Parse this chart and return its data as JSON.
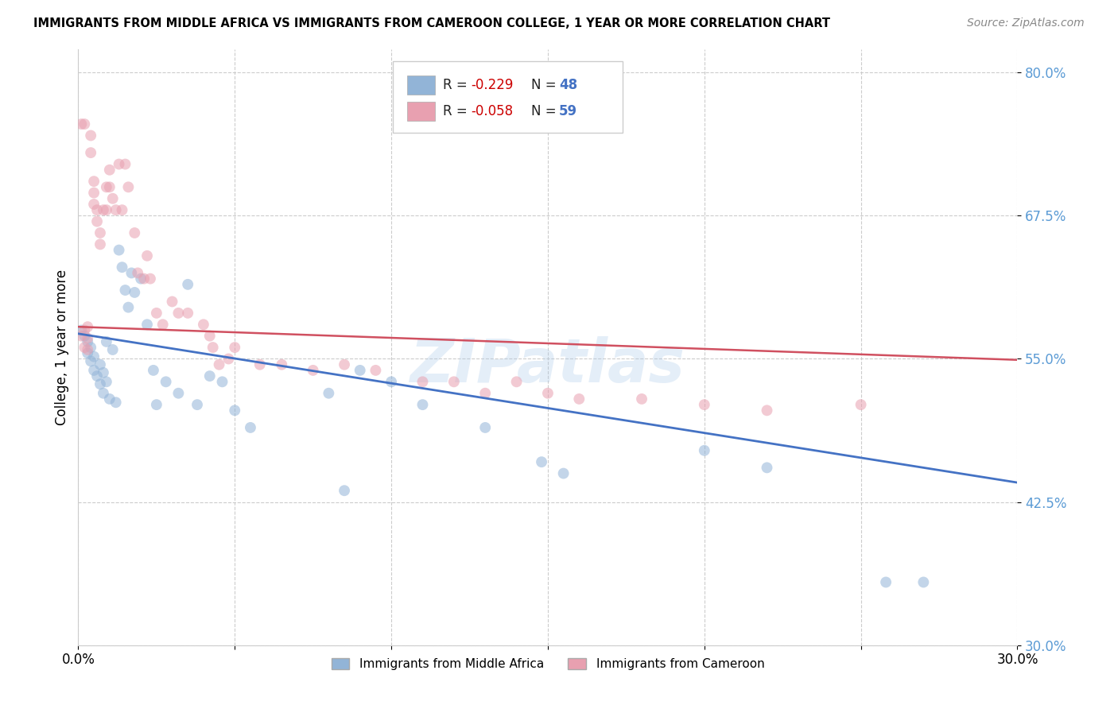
{
  "title": "IMMIGRANTS FROM MIDDLE AFRICA VS IMMIGRANTS FROM CAMEROON COLLEGE, 1 YEAR OR MORE CORRELATION CHART",
  "source": "Source: ZipAtlas.com",
  "xlabel_blue": "Immigrants from Middle Africa",
  "xlabel_pink": "Immigrants from Cameroon",
  "ylabel": "College, 1 year or more",
  "xlim": [
    0.0,
    0.3
  ],
  "ylim": [
    0.3,
    0.82
  ],
  "yticks": [
    0.3,
    0.425,
    0.55,
    0.675,
    0.8
  ],
  "ytick_labels": [
    "30.0%",
    "42.5%",
    "55.0%",
    "67.5%",
    "80.0%"
  ],
  "xticks": [
    0.0,
    0.05,
    0.1,
    0.15,
    0.2,
    0.25,
    0.3
  ],
  "xtick_labels": [
    "0.0%",
    "",
    "",
    "",
    "",
    "",
    "30.0%"
  ],
  "legend_R_blue": "-0.229",
  "legend_N_blue": "48",
  "legend_R_pink": "-0.058",
  "legend_N_pink": "59",
  "blue_color": "#92b4d7",
  "pink_color": "#e8a0b0",
  "blue_line_color": "#4472c4",
  "pink_line_color": "#d05060",
  "watermark": "ZIPatlas",
  "blue_x": [
    0.001,
    0.002,
    0.003,
    0.003,
    0.004,
    0.004,
    0.005,
    0.005,
    0.006,
    0.007,
    0.007,
    0.008,
    0.008,
    0.009,
    0.009,
    0.01,
    0.011,
    0.012,
    0.013,
    0.014,
    0.015,
    0.016,
    0.017,
    0.018,
    0.02,
    0.022,
    0.024,
    0.025,
    0.028,
    0.032,
    0.035,
    0.038,
    0.042,
    0.046,
    0.05,
    0.055,
    0.08,
    0.085,
    0.09,
    0.1,
    0.11,
    0.13,
    0.148,
    0.155,
    0.2,
    0.22,
    0.258,
    0.27
  ],
  "blue_y": [
    0.575,
    0.57,
    0.565,
    0.555,
    0.56,
    0.548,
    0.54,
    0.552,
    0.535,
    0.545,
    0.528,
    0.538,
    0.52,
    0.565,
    0.53,
    0.515,
    0.558,
    0.512,
    0.645,
    0.63,
    0.61,
    0.595,
    0.625,
    0.608,
    0.62,
    0.58,
    0.54,
    0.51,
    0.53,
    0.52,
    0.615,
    0.51,
    0.535,
    0.53,
    0.505,
    0.49,
    0.52,
    0.435,
    0.54,
    0.53,
    0.51,
    0.49,
    0.46,
    0.45,
    0.47,
    0.455,
    0.355,
    0.355
  ],
  "pink_x": [
    0.001,
    0.001,
    0.002,
    0.002,
    0.002,
    0.003,
    0.003,
    0.003,
    0.004,
    0.004,
    0.005,
    0.005,
    0.005,
    0.006,
    0.006,
    0.007,
    0.007,
    0.008,
    0.009,
    0.009,
    0.01,
    0.01,
    0.011,
    0.012,
    0.013,
    0.014,
    0.015,
    0.016,
    0.018,
    0.019,
    0.021,
    0.022,
    0.023,
    0.025,
    0.027,
    0.03,
    0.032,
    0.035,
    0.04,
    0.042,
    0.043,
    0.045,
    0.048,
    0.05,
    0.058,
    0.065,
    0.075,
    0.085,
    0.095,
    0.11,
    0.12,
    0.13,
    0.14,
    0.15,
    0.16,
    0.18,
    0.2,
    0.22,
    0.25
  ],
  "pink_y": [
    0.57,
    0.755,
    0.56,
    0.575,
    0.755,
    0.558,
    0.568,
    0.578,
    0.745,
    0.73,
    0.685,
    0.695,
    0.705,
    0.68,
    0.67,
    0.65,
    0.66,
    0.68,
    0.7,
    0.68,
    0.7,
    0.715,
    0.69,
    0.68,
    0.72,
    0.68,
    0.72,
    0.7,
    0.66,
    0.625,
    0.62,
    0.64,
    0.62,
    0.59,
    0.58,
    0.6,
    0.59,
    0.59,
    0.58,
    0.57,
    0.56,
    0.545,
    0.55,
    0.56,
    0.545,
    0.545,
    0.54,
    0.545,
    0.54,
    0.53,
    0.53,
    0.52,
    0.53,
    0.52,
    0.515,
    0.515,
    0.51,
    0.505,
    0.51
  ]
}
